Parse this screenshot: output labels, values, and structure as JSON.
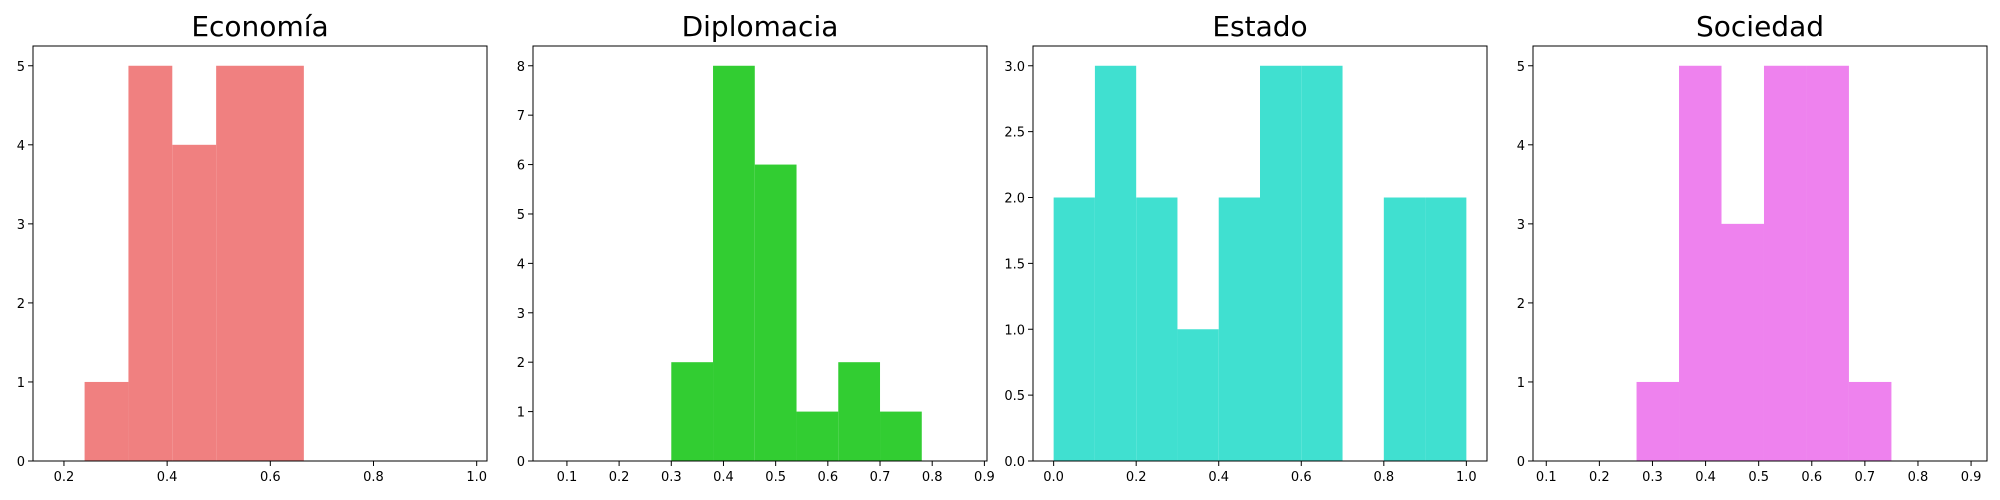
{
  "chart_data": [
    {
      "type": "bar",
      "title": "Economía",
      "color": "#f08080",
      "xlim": [
        0.14,
        1.02
      ],
      "ylim": [
        0,
        5.25
      ],
      "xticks": [
        0.2,
        0.4,
        0.6,
        0.8,
        1.0
      ],
      "xtick_labels": [
        "0.2",
        "0.4",
        "0.6",
        "0.8",
        "1.0"
      ],
      "yticks": [
        0,
        1,
        2,
        3,
        4,
        5
      ],
      "ytick_labels": [
        "0",
        "1",
        "2",
        "3",
        "4",
        "5"
      ],
      "bins": [
        {
          "x0": 0.24,
          "x1": 0.325,
          "count": 1
        },
        {
          "x0": 0.325,
          "x1": 0.41,
          "count": 5
        },
        {
          "x0": 0.41,
          "x1": 0.495,
          "count": 4
        },
        {
          "x0": 0.495,
          "x1": 0.58,
          "count": 5
        },
        {
          "x0": 0.58,
          "x1": 0.665,
          "count": 5
        }
      ]
    },
    {
      "type": "bar",
      "title": "Diplomacia",
      "color": "#32cd32",
      "xlim": [
        0.035,
        0.905
      ],
      "ylim": [
        0,
        8.4
      ],
      "xticks": [
        0.1,
        0.2,
        0.3,
        0.4,
        0.5,
        0.6,
        0.7,
        0.8,
        0.9
      ],
      "xtick_labels": [
        "0.1",
        "0.2",
        "0.3",
        "0.4",
        "0.5",
        "0.6",
        "0.7",
        "0.8",
        "0.9"
      ],
      "yticks": [
        0,
        1,
        2,
        3,
        4,
        5,
        6,
        7,
        8
      ],
      "ytick_labels": [
        "0",
        "1",
        "2",
        "3",
        "4",
        "5",
        "6",
        "7",
        "8"
      ],
      "bins": [
        {
          "x0": 0.3,
          "x1": 0.38,
          "count": 2
        },
        {
          "x0": 0.38,
          "x1": 0.46,
          "count": 8
        },
        {
          "x0": 0.46,
          "x1": 0.54,
          "count": 6
        },
        {
          "x0": 0.54,
          "x1": 0.62,
          "count": 1
        },
        {
          "x0": 0.62,
          "x1": 0.7,
          "count": 2
        },
        {
          "x0": 0.7,
          "x1": 0.78,
          "count": 1
        }
      ]
    },
    {
      "type": "bar",
      "title": "Estado",
      "color": "#40e0d0",
      "xlim": [
        -0.05,
        1.05
      ],
      "ylim": [
        0,
        3.15
      ],
      "xticks": [
        0.0,
        0.2,
        0.4,
        0.6,
        0.8,
        1.0
      ],
      "xtick_labels": [
        "0.0",
        "0.2",
        "0.4",
        "0.6",
        "0.8",
        "1.0"
      ],
      "yticks": [
        0.0,
        0.5,
        1.0,
        1.5,
        2.0,
        2.5,
        3.0
      ],
      "ytick_labels": [
        "0.0",
        "0.5",
        "1.0",
        "1.5",
        "2.0",
        "2.5",
        "3.0"
      ],
      "bins": [
        {
          "x0": 0.0,
          "x1": 0.1,
          "count": 2
        },
        {
          "x0": 0.1,
          "x1": 0.2,
          "count": 3
        },
        {
          "x0": 0.2,
          "x1": 0.3,
          "count": 2
        },
        {
          "x0": 0.3,
          "x1": 0.4,
          "count": 1
        },
        {
          "x0": 0.4,
          "x1": 0.5,
          "count": 2
        },
        {
          "x0": 0.5,
          "x1": 0.6,
          "count": 3
        },
        {
          "x0": 0.6,
          "x1": 0.7,
          "count": 3
        },
        {
          "x0": 0.7,
          "x1": 0.8,
          "count": 0
        },
        {
          "x0": 0.8,
          "x1": 0.9,
          "count": 2
        },
        {
          "x0": 0.9,
          "x1": 1.0,
          "count": 2
        }
      ]
    },
    {
      "type": "bar",
      "title": "Sociedad",
      "color": "#ee82ee",
      "xlim": [
        0.075,
        0.93
      ],
      "ylim": [
        0,
        5.25
      ],
      "xticks": [
        0.1,
        0.2,
        0.3,
        0.4,
        0.5,
        0.6,
        0.7,
        0.8,
        0.9
      ],
      "xtick_labels": [
        "0.1",
        "0.2",
        "0.3",
        "0.4",
        "0.5",
        "0.6",
        "0.7",
        "0.8",
        "0.9"
      ],
      "yticks": [
        0,
        1,
        2,
        3,
        4,
        5
      ],
      "ytick_labels": [
        "0",
        "1",
        "2",
        "3",
        "4",
        "5"
      ],
      "bins": [
        {
          "x0": 0.27,
          "x1": 0.35,
          "count": 1
        },
        {
          "x0": 0.35,
          "x1": 0.43,
          "count": 5
        },
        {
          "x0": 0.43,
          "x1": 0.51,
          "count": 3
        },
        {
          "x0": 0.51,
          "x1": 0.59,
          "count": 5
        },
        {
          "x0": 0.59,
          "x1": 0.67,
          "count": 5
        },
        {
          "x0": 0.67,
          "x1": 0.75,
          "count": 1
        }
      ]
    }
  ]
}
